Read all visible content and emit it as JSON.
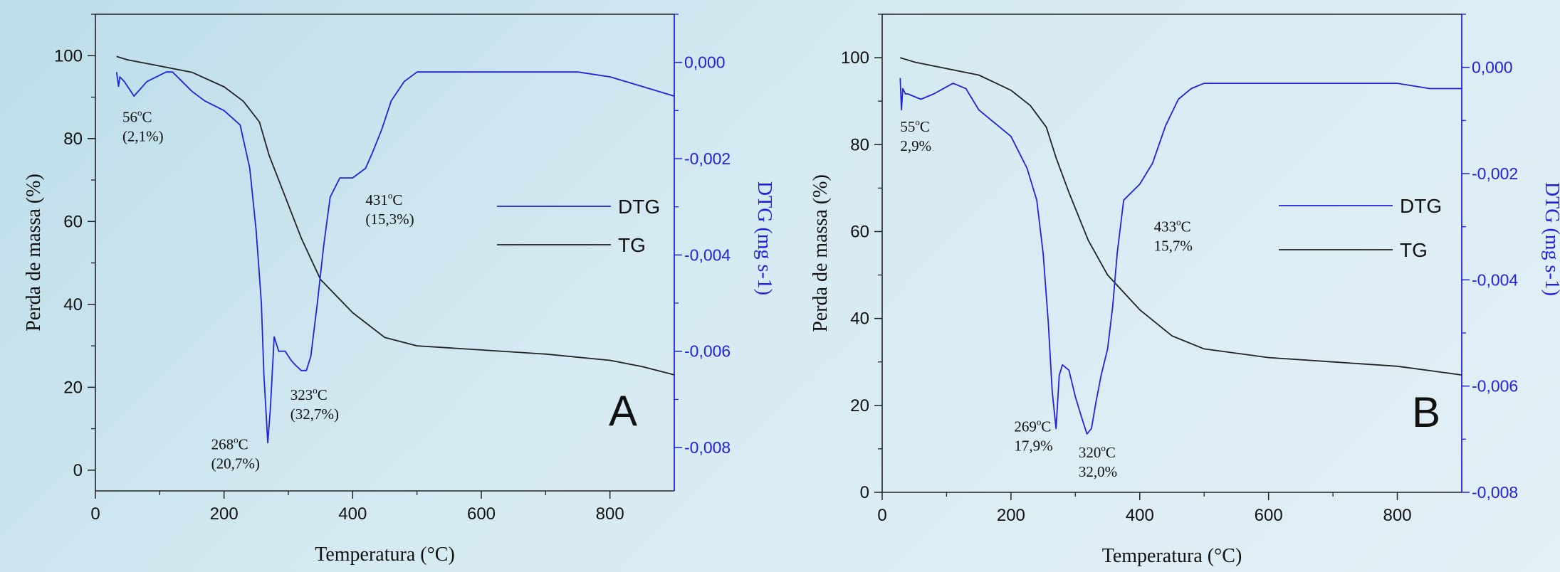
{
  "chart_data": [
    {
      "type": "line",
      "panel_letter": "A",
      "xlabel": "Temperatura (°C)",
      "ylabel": "Perda de massa (%)",
      "y2label": "DTG (mg s-1)",
      "xlim": [
        0,
        900
      ],
      "ylim": [
        -5,
        110
      ],
      "y2lim": [
        -0.0089,
        0.001
      ],
      "x_ticks": [
        "0",
        "200",
        "400",
        "600",
        "800"
      ],
      "y_ticks": [
        "0",
        "20",
        "40",
        "60",
        "80",
        "100"
      ],
      "y2_ticks": [
        "0,000",
        "-0,002",
        "-0,004",
        "-0,006",
        "-0,008"
      ],
      "legend": {
        "position": "right-center",
        "items": [
          {
            "name": "DTG",
            "color": "#2222dd"
          },
          {
            "name": "TG",
            "color": "#222222"
          }
        ]
      },
      "series": [
        {
          "name": "TG",
          "axis": "left",
          "color": "#222222",
          "x": [
            33,
            50,
            100,
            150,
            200,
            230,
            255,
            270,
            290,
            320,
            350,
            400,
            450,
            500,
            600,
            700,
            800,
            850,
            900
          ],
          "y": [
            99.8,
            99,
            97.5,
            96,
            92.5,
            89,
            84,
            76,
            68,
            56,
            46,
            38,
            32,
            30,
            29,
            28,
            26.5,
            25,
            23
          ]
        },
        {
          "name": "DTG",
          "axis": "right",
          "color": "#2222dd",
          "x": [
            33,
            36,
            38,
            45,
            60,
            80,
            110,
            120,
            150,
            170,
            200,
            225,
            240,
            250,
            258,
            262,
            268,
            272,
            278,
            285,
            295,
            305,
            312,
            320,
            328,
            335,
            345,
            355,
            365,
            380,
            400,
            420,
            430,
            445,
            460,
            480,
            500,
            520,
            550,
            600,
            650,
            700,
            750,
            800,
            850,
            900
          ],
          "y": [
            -0.0002,
            -0.0005,
            -0.0003,
            -0.0004,
            -0.0007,
            -0.0004,
            -0.0002,
            -0.0002,
            -0.0006,
            -0.0008,
            -0.001,
            -0.0013,
            -0.0022,
            -0.0035,
            -0.005,
            -0.0065,
            -0.0079,
            -0.0072,
            -0.0057,
            -0.006,
            -0.006,
            -0.0062,
            -0.0063,
            -0.0064,
            -0.0064,
            -0.0061,
            -0.005,
            -0.0038,
            -0.0028,
            -0.0024,
            -0.0024,
            -0.0022,
            -0.0019,
            -0.0014,
            -0.0008,
            -0.0004,
            -0.0002,
            -0.0002,
            -0.0002,
            -0.0002,
            -0.0002,
            -0.0002,
            -0.0002,
            -0.0003,
            -0.0005,
            -0.0007
          ]
        }
      ],
      "annotations": [
        {
          "temp": "56",
          "loss": "(2,1%)",
          "x": 42,
          "y": 84
        },
        {
          "temp": "268",
          "loss": "(20,7%)",
          "x": 180,
          "y": 5
        },
        {
          "temp": "323",
          "loss": "(32,7%)",
          "x": 303,
          "y": 17
        },
        {
          "temp": "431",
          "loss": "(15,3%)",
          "x": 420,
          "y": 64
        }
      ]
    },
    {
      "type": "line",
      "panel_letter": "B",
      "xlabel": "Temperatura (°C)",
      "ylabel": "Perda de massa (%)",
      "y2label": "DTG (mg s-1)",
      "xlim": [
        0,
        900
      ],
      "ylim": [
        0,
        110
      ],
      "y2lim": [
        -0.008,
        0.001
      ],
      "x_ticks": [
        "0",
        "200",
        "400",
        "600",
        "800"
      ],
      "y_ticks": [
        "0",
        "20",
        "40",
        "60",
        "80",
        "100"
      ],
      "y2_ticks": [
        "0,000",
        "-0,002",
        "-0,004",
        "-0,006",
        "-0,008"
      ],
      "legend": {
        "position": "right-center",
        "items": [
          {
            "name": "DTG",
            "color": "#2222dd"
          },
          {
            "name": "TG",
            "color": "#222222"
          }
        ]
      },
      "series": [
        {
          "name": "TG",
          "axis": "left",
          "color": "#222222",
          "x": [
            28,
            50,
            100,
            150,
            200,
            230,
            255,
            270,
            290,
            320,
            350,
            400,
            450,
            500,
            600,
            700,
            800,
            850,
            900
          ],
          "y": [
            100,
            99,
            97.5,
            96,
            92.5,
            89,
            84,
            77,
            69,
            58,
            50,
            42,
            36,
            33,
            31,
            30,
            29,
            28,
            27
          ]
        },
        {
          "name": "DTG",
          "axis": "right",
          "color": "#2222dd",
          "x": [
            28,
            30,
            32,
            36,
            40,
            60,
            80,
            110,
            130,
            150,
            180,
            200,
            225,
            240,
            250,
            258,
            264,
            270,
            275,
            280,
            290,
            300,
            310,
            318,
            325,
            332,
            340,
            350,
            358,
            365,
            375,
            400,
            420,
            440,
            460,
            480,
            500,
            550,
            600,
            650,
            700,
            750,
            800,
            850,
            900
          ],
          "y": [
            -0.0002,
            -0.0008,
            -0.0004,
            -0.0005,
            -0.0005,
            -0.0006,
            -0.0005,
            -0.0003,
            -0.0004,
            -0.0008,
            -0.0011,
            -0.0013,
            -0.0019,
            -0.0025,
            -0.0035,
            -0.0048,
            -0.0061,
            -0.0068,
            -0.0058,
            -0.0056,
            -0.0057,
            -0.0062,
            -0.0066,
            -0.0069,
            -0.0068,
            -0.0063,
            -0.0058,
            -0.0053,
            -0.0045,
            -0.0035,
            -0.0025,
            -0.0022,
            -0.0018,
            -0.0011,
            -0.0006,
            -0.0004,
            -0.0003,
            -0.0003,
            -0.0003,
            -0.0003,
            -0.0003,
            -0.0003,
            -0.0003,
            -0.0004,
            -0.0004
          ]
        }
      ],
      "annotations": [
        {
          "temp": "55",
          "loss": "2,9%",
          "x": 28,
          "y": 83
        },
        {
          "temp": "269",
          "loss": "17,9%",
          "x": 205,
          "y": 14
        },
        {
          "temp": "320",
          "loss": "32,0%",
          "x": 305,
          "y": 8
        },
        {
          "temp": "433",
          "loss": "15,7%",
          "x": 422,
          "y": 60
        }
      ]
    }
  ]
}
